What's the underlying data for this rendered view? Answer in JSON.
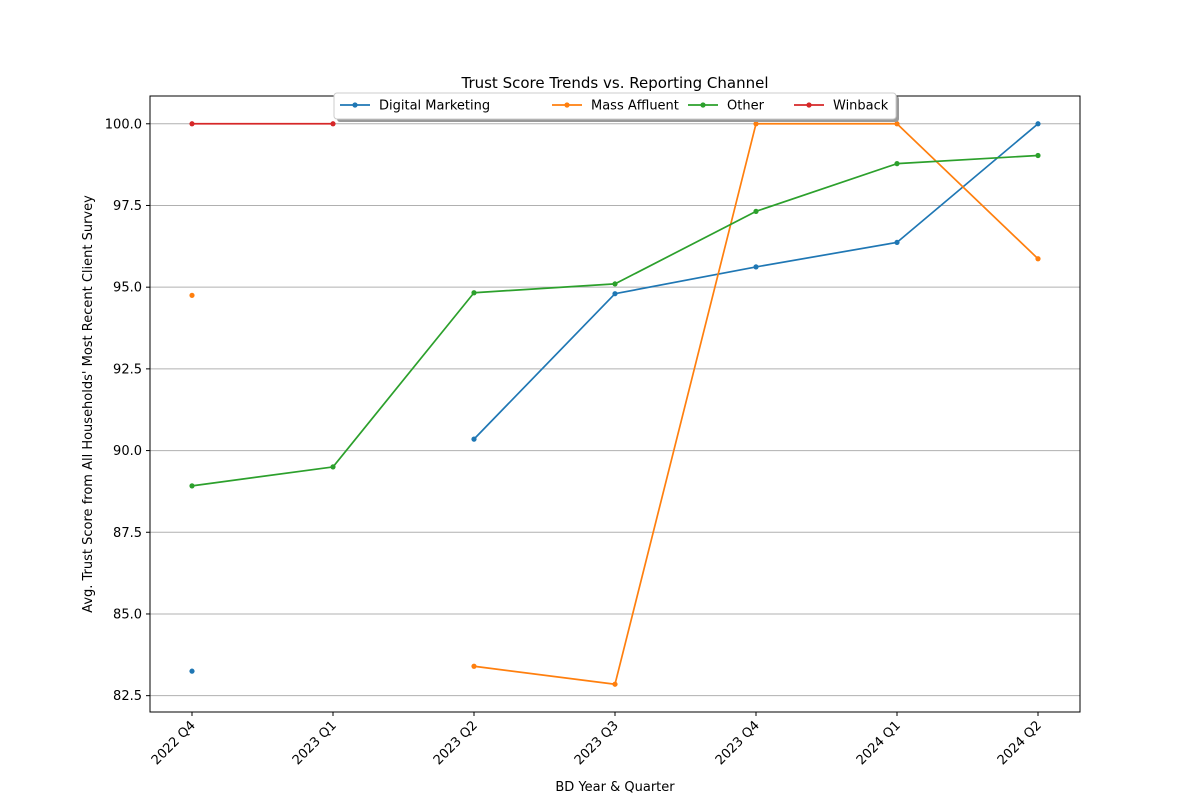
{
  "chart_data": {
    "type": "line",
    "title": "Trust Score Trends vs. Reporting Channel",
    "xlabel": "BD Year & Quarter",
    "ylabel": "Avg. Trust Score from All Households' Most Recent Client Survey",
    "categories": [
      "2022 Q4",
      "2023 Q1",
      "2023 Q2",
      "2023 Q3",
      "2023 Q4",
      "2024 Q1",
      "2024 Q2"
    ],
    "ylim": [
      82,
      100.85
    ],
    "yticks": [
      "82.5",
      "85.0",
      "87.5",
      "90.0",
      "92.5",
      "95.0",
      "97.5",
      "100.0"
    ],
    "grid": "horizontal",
    "legend_position": "top-center",
    "series": [
      {
        "name": "Digital Marketing",
        "color": "#1f77b4",
        "values": [
          83.25,
          null,
          90.35,
          94.8,
          95.62,
          96.37,
          100.0
        ]
      },
      {
        "name": "Mass Affluent",
        "color": "#ff7f0e",
        "values": [
          94.75,
          null,
          83.4,
          82.85,
          100.0,
          100.0,
          95.87
        ]
      },
      {
        "name": "Other",
        "color": "#2ca02c",
        "values": [
          88.92,
          89.5,
          94.83,
          95.1,
          97.32,
          98.78,
          99.03
        ]
      },
      {
        "name": "Winback",
        "color": "#d62728",
        "values": [
          100.0,
          100.0,
          null,
          null,
          null,
          null,
          null
        ]
      }
    ]
  }
}
